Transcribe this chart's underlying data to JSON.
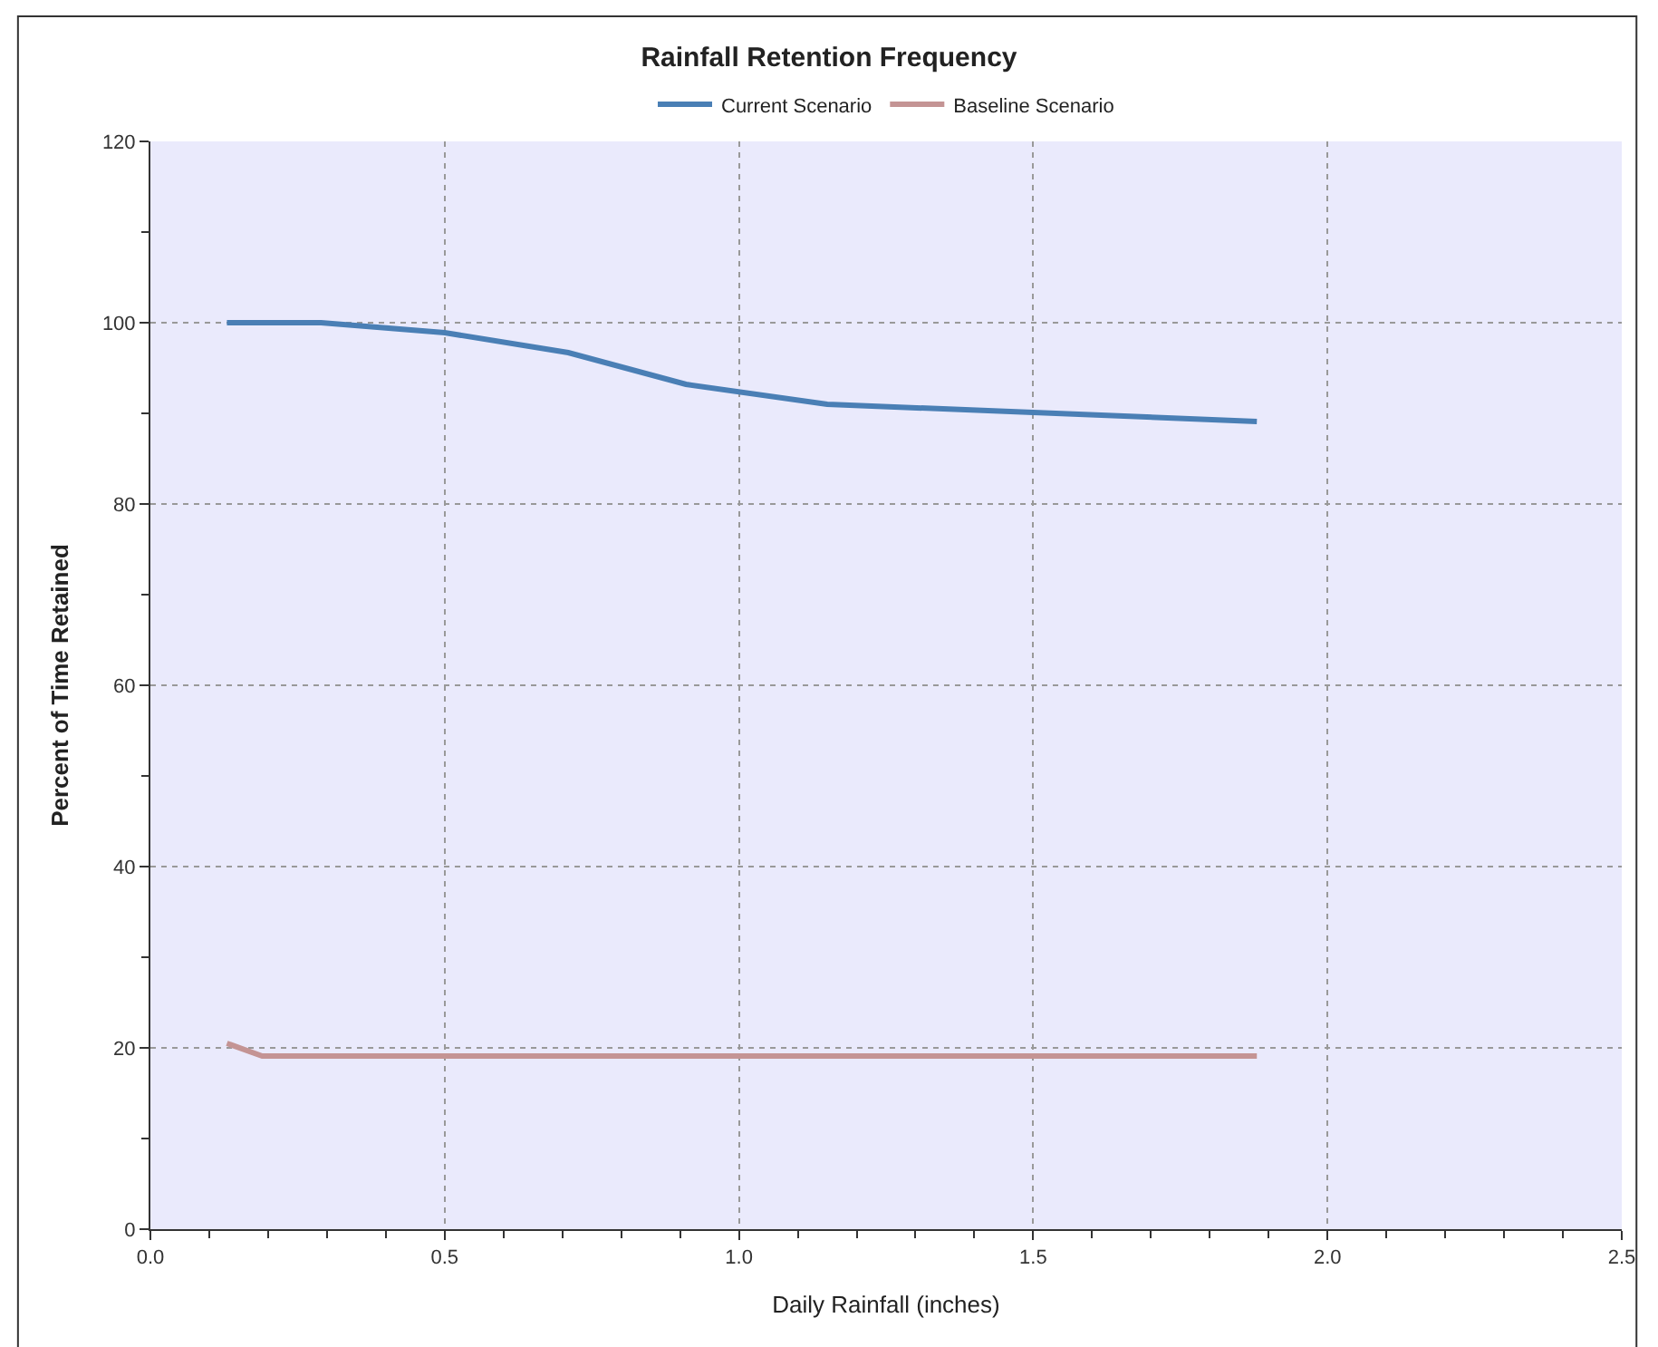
{
  "chart_data": {
    "type": "line",
    "title": "Rainfall Retention Frequency",
    "xlabel": "Daily Rainfall (inches)",
    "ylabel": "Percent of Time Retained",
    "series": [
      {
        "name": "Current Scenario",
        "color": "#4a7fb5",
        "x": [
          0.13,
          0.29,
          0.5,
          0.71,
          0.91,
          1.15,
          1.5,
          1.88
        ],
        "values": [
          100,
          100,
          98.9,
          96.7,
          93.2,
          91,
          90.1,
          89.1
        ]
      },
      {
        "name": "Baseline Scenario",
        "color": "#c49494",
        "x": [
          0.13,
          0.19,
          1.88
        ],
        "values": [
          20.5,
          19.1,
          19.1
        ]
      }
    ],
    "xlim": [
      0,
      2.5
    ],
    "xticks": [
      {
        "value": 0,
        "label": "0.0"
      },
      0.5,
      {
        "value": 1,
        "label": "1.0"
      },
      1.5,
      {
        "value": 2,
        "label": "2.0"
      },
      2.5
    ],
    "ylim": [
      0,
      120
    ],
    "yticks": [
      0,
      20,
      40,
      60,
      80,
      100,
      120
    ],
    "grid": true,
    "legend": "top",
    "marker": "none",
    "line_style": "solid"
  }
}
